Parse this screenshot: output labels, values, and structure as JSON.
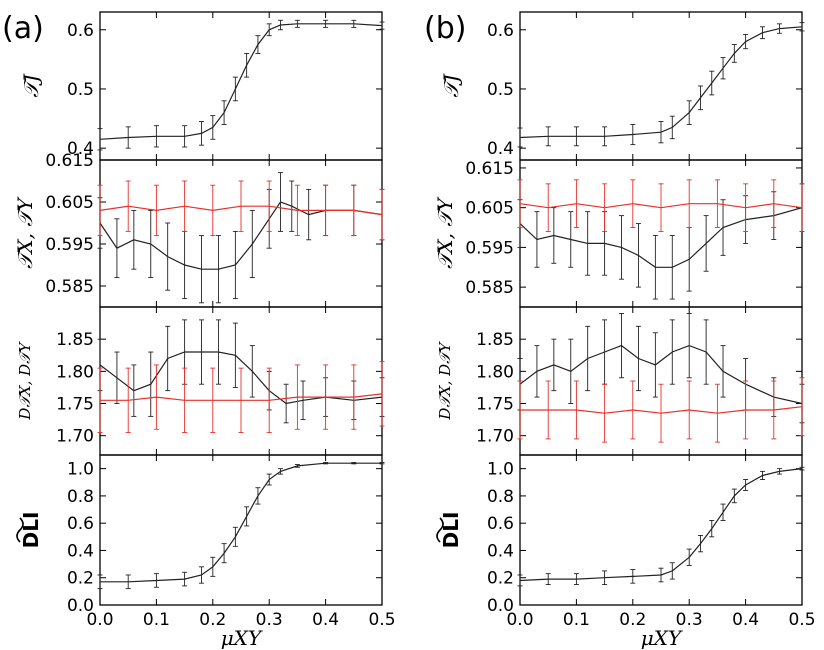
{
  "figure": {
    "panel_a_label": "(a)",
    "panel_b_label": "(b)"
  },
  "colors": {
    "black_series": "#222222",
    "red_series": "#e8302a"
  },
  "chart_data": [
    {
      "panel": "a",
      "row": 1,
      "type": "line",
      "ylabel": "𝒯J",
      "xlabel": "",
      "xlim": [
        0,
        0.5
      ],
      "ylim": [
        0.38,
        0.63
      ],
      "yticks": [
        0.4,
        0.5,
        0.6
      ],
      "ytick_labels": [
        "0.4",
        "0.5",
        "0.6"
      ],
      "series": [
        {
          "color": "black",
          "x": [
            0,
            0.05,
            0.1,
            0.15,
            0.18,
            0.2,
            0.22,
            0.24,
            0.26,
            0.28,
            0.3,
            0.32,
            0.35,
            0.4,
            0.45,
            0.5
          ],
          "y": [
            0.415,
            0.418,
            0.42,
            0.42,
            0.425,
            0.435,
            0.46,
            0.5,
            0.54,
            0.575,
            0.6,
            0.608,
            0.61,
            0.61,
            0.61,
            0.607
          ],
          "err": [
            0.018,
            0.018,
            0.018,
            0.018,
            0.02,
            0.02,
            0.02,
            0.02,
            0.02,
            0.015,
            0.01,
            0.008,
            0.006,
            0.006,
            0.006,
            0.006
          ]
        }
      ]
    },
    {
      "panel": "a",
      "row": 2,
      "type": "line",
      "ylabel": "𝒯X, 𝒯Y",
      "xlabel": "",
      "xlim": [
        0,
        0.5
      ],
      "ylim": [
        0.58,
        0.615
      ],
      "yticks": [
        0.585,
        0.595,
        0.605,
        0.615
      ],
      "ytick_labels": [
        "0.585",
        "0.595",
        "0.605",
        "0.615"
      ],
      "series": [
        {
          "color": "black",
          "x": [
            0,
            0.03,
            0.06,
            0.09,
            0.12,
            0.15,
            0.18,
            0.21,
            0.24,
            0.27,
            0.3,
            0.32,
            0.34,
            0.37,
            0.4,
            0.45,
            0.5
          ],
          "y": [
            0.6,
            0.594,
            0.596,
            0.595,
            0.592,
            0.59,
            0.589,
            0.589,
            0.59,
            0.595,
            0.601,
            0.605,
            0.604,
            0.602,
            0.603,
            0.603,
            0.602
          ],
          "err": [
            0.006,
            0.007,
            0.007,
            0.008,
            0.008,
            0.008,
            0.008,
            0.008,
            0.008,
            0.008,
            0.007,
            0.007,
            0.006,
            0.006,
            0.006,
            0.006,
            0.006
          ]
        },
        {
          "color": "red",
          "x": [
            0,
            0.05,
            0.1,
            0.15,
            0.2,
            0.25,
            0.3,
            0.35,
            0.4,
            0.45,
            0.5
          ],
          "y": [
            0.603,
            0.604,
            0.603,
            0.604,
            0.603,
            0.604,
            0.604,
            0.603,
            0.603,
            0.603,
            0.602
          ],
          "err": [
            0.006,
            0.006,
            0.006,
            0.006,
            0.006,
            0.006,
            0.006,
            0.006,
            0.006,
            0.006,
            0.006
          ]
        }
      ]
    },
    {
      "panel": "a",
      "row": 3,
      "type": "line",
      "ylabel": "D𝒯X, D𝒯Y",
      "xlabel": "",
      "xlim": [
        0,
        0.5
      ],
      "ylim": [
        1.67,
        1.9
      ],
      "yticks": [
        1.7,
        1.75,
        1.8,
        1.85
      ],
      "ytick_labels": [
        "1.70",
        "1.75",
        "1.80",
        "1.85"
      ],
      "series": [
        {
          "color": "black",
          "x": [
            0,
            0.03,
            0.06,
            0.09,
            0.12,
            0.15,
            0.18,
            0.21,
            0.24,
            0.27,
            0.3,
            0.33,
            0.36,
            0.4,
            0.45,
            0.5
          ],
          "y": [
            1.81,
            1.79,
            1.77,
            1.78,
            1.82,
            1.83,
            1.83,
            1.83,
            1.825,
            1.8,
            1.77,
            1.75,
            1.755,
            1.76,
            1.755,
            1.76
          ],
          "err": [
            0.04,
            0.04,
            0.04,
            0.05,
            0.05,
            0.05,
            0.05,
            0.05,
            0.05,
            0.04,
            0.03,
            0.03,
            0.03,
            0.03,
            0.03,
            0.03
          ]
        },
        {
          "color": "red",
          "x": [
            0,
            0.05,
            0.1,
            0.15,
            0.2,
            0.25,
            0.3,
            0.35,
            0.4,
            0.45,
            0.5
          ],
          "y": [
            1.755,
            1.755,
            1.76,
            1.755,
            1.755,
            1.755,
            1.755,
            1.76,
            1.76,
            1.76,
            1.765
          ],
          "err": [
            0.05,
            0.05,
            0.05,
            0.05,
            0.05,
            0.05,
            0.05,
            0.05,
            0.05,
            0.05,
            0.05
          ]
        }
      ]
    },
    {
      "panel": "a",
      "row": 4,
      "type": "line",
      "ylabel": "DLI",
      "xlabel": "μXY",
      "xlim": [
        0,
        0.5
      ],
      "ylim": [
        0,
        1.1
      ],
      "yticks": [
        0,
        0.2,
        0.4,
        0.6,
        0.8,
        1.0
      ],
      "ytick_labels": [
        "0.0",
        "0.2",
        "0.4",
        "0.6",
        "0.8",
        "1.0"
      ],
      "xticks": [
        0,
        0.1,
        0.2,
        0.3,
        0.4,
        0.5
      ],
      "xtick_labels": [
        "0.0",
        "0.1",
        "0.2",
        "0.3",
        "0.4",
        "0.5"
      ],
      "series": [
        {
          "color": "black",
          "x": [
            0,
            0.05,
            0.1,
            0.15,
            0.18,
            0.2,
            0.22,
            0.24,
            0.26,
            0.28,
            0.3,
            0.32,
            0.35,
            0.4,
            0.45,
            0.5
          ],
          "y": [
            0.17,
            0.17,
            0.18,
            0.19,
            0.22,
            0.28,
            0.38,
            0.5,
            0.65,
            0.8,
            0.92,
            0.98,
            1.02,
            1.04,
            1.04,
            1.04
          ],
          "err": [
            0.05,
            0.05,
            0.05,
            0.05,
            0.06,
            0.07,
            0.07,
            0.07,
            0.07,
            0.06,
            0.04,
            0.02,
            0.01,
            0.005,
            0.005,
            0.005
          ]
        }
      ]
    },
    {
      "panel": "b",
      "row": 1,
      "type": "line",
      "ylabel": "𝒯J",
      "xlabel": "",
      "xlim": [
        0,
        0.5
      ],
      "ylim": [
        0.38,
        0.63
      ],
      "yticks": [
        0.4,
        0.5,
        0.6
      ],
      "ytick_labels": [
        "0.4",
        "0.5",
        "0.6"
      ],
      "series": [
        {
          "color": "black",
          "x": [
            0,
            0.05,
            0.1,
            0.15,
            0.2,
            0.25,
            0.27,
            0.3,
            0.32,
            0.34,
            0.36,
            0.38,
            0.4,
            0.43,
            0.46,
            0.5
          ],
          "y": [
            0.418,
            0.42,
            0.42,
            0.42,
            0.423,
            0.427,
            0.435,
            0.46,
            0.485,
            0.51,
            0.535,
            0.56,
            0.58,
            0.595,
            0.602,
            0.605
          ],
          "err": [
            0.016,
            0.016,
            0.016,
            0.016,
            0.017,
            0.018,
            0.019,
            0.02,
            0.02,
            0.02,
            0.018,
            0.015,
            0.012,
            0.01,
            0.008,
            0.007
          ]
        }
      ]
    },
    {
      "panel": "b",
      "row": 2,
      "type": "line",
      "ylabel": "𝒯X, 𝒯Y",
      "xlabel": "",
      "xlim": [
        0,
        0.5
      ],
      "ylim": [
        0.58,
        0.617
      ],
      "yticks": [
        0.585,
        0.595,
        0.605,
        0.615
      ],
      "ytick_labels": [
        "0.585",
        "0.595",
        "0.605",
        "0.615"
      ],
      "series": [
        {
          "color": "black",
          "x": [
            0,
            0.03,
            0.06,
            0.09,
            0.12,
            0.15,
            0.18,
            0.21,
            0.24,
            0.27,
            0.3,
            0.33,
            0.36,
            0.4,
            0.45,
            0.5
          ],
          "y": [
            0.601,
            0.597,
            0.598,
            0.597,
            0.596,
            0.596,
            0.595,
            0.593,
            0.59,
            0.59,
            0.592,
            0.596,
            0.6,
            0.602,
            0.603,
            0.605
          ],
          "err": [
            0.006,
            0.007,
            0.007,
            0.007,
            0.008,
            0.008,
            0.008,
            0.008,
            0.008,
            0.008,
            0.008,
            0.007,
            0.007,
            0.006,
            0.006,
            0.006
          ]
        },
        {
          "color": "red",
          "x": [
            0,
            0.05,
            0.1,
            0.15,
            0.2,
            0.25,
            0.3,
            0.35,
            0.4,
            0.45,
            0.5
          ],
          "y": [
            0.606,
            0.605,
            0.606,
            0.605,
            0.606,
            0.605,
            0.606,
            0.606,
            0.605,
            0.606,
            0.605
          ],
          "err": [
            0.006,
            0.006,
            0.006,
            0.006,
            0.006,
            0.006,
            0.006,
            0.006,
            0.006,
            0.006,
            0.006
          ]
        }
      ]
    },
    {
      "panel": "b",
      "row": 3,
      "type": "line",
      "ylabel": "D𝒯X, D𝒯Y",
      "xlabel": "",
      "xlim": [
        0,
        0.5
      ],
      "ylim": [
        1.67,
        1.9
      ],
      "yticks": [
        1.7,
        1.75,
        1.8,
        1.85
      ],
      "ytick_labels": [
        "1.70",
        "1.75",
        "1.80",
        "1.85"
      ],
      "series": [
        {
          "color": "black",
          "x": [
            0,
            0.03,
            0.06,
            0.09,
            0.12,
            0.15,
            0.18,
            0.21,
            0.24,
            0.27,
            0.3,
            0.33,
            0.36,
            0.4,
            0.45,
            0.5
          ],
          "y": [
            1.78,
            1.8,
            1.81,
            1.8,
            1.82,
            1.83,
            1.84,
            1.82,
            1.81,
            1.83,
            1.84,
            1.83,
            1.8,
            1.78,
            1.76,
            1.75
          ],
          "err": [
            0.04,
            0.04,
            0.04,
            0.05,
            0.05,
            0.05,
            0.05,
            0.05,
            0.05,
            0.05,
            0.05,
            0.05,
            0.04,
            0.04,
            0.03,
            0.03
          ]
        },
        {
          "color": "red",
          "x": [
            0,
            0.05,
            0.1,
            0.15,
            0.2,
            0.25,
            0.3,
            0.35,
            0.4,
            0.45,
            0.5
          ],
          "y": [
            1.74,
            1.74,
            1.74,
            1.735,
            1.74,
            1.735,
            1.74,
            1.735,
            1.74,
            1.74,
            1.745
          ],
          "err": [
            0.045,
            0.045,
            0.045,
            0.045,
            0.045,
            0.045,
            0.045,
            0.045,
            0.045,
            0.045,
            0.045
          ]
        }
      ]
    },
    {
      "panel": "b",
      "row": 4,
      "type": "line",
      "ylabel": "DLI",
      "xlabel": "μXY",
      "xlim": [
        0,
        0.5
      ],
      "ylim": [
        0,
        1.1
      ],
      "yticks": [
        0,
        0.2,
        0.4,
        0.6,
        0.8,
        1.0
      ],
      "ytick_labels": [
        "0.0",
        "0.2",
        "0.4",
        "0.6",
        "0.8",
        "1.0"
      ],
      "xticks": [
        0,
        0.1,
        0.2,
        0.3,
        0.4,
        0.5
      ],
      "xtick_labels": [
        "0.0",
        "0.1",
        "0.2",
        "0.3",
        "0.4",
        "0.5"
      ],
      "series": [
        {
          "color": "black",
          "x": [
            0,
            0.05,
            0.1,
            0.15,
            0.2,
            0.25,
            0.27,
            0.3,
            0.32,
            0.34,
            0.36,
            0.38,
            0.4,
            0.43,
            0.46,
            0.5
          ],
          "y": [
            0.18,
            0.19,
            0.19,
            0.2,
            0.21,
            0.22,
            0.25,
            0.35,
            0.45,
            0.56,
            0.68,
            0.8,
            0.88,
            0.95,
            0.98,
            1.0
          ],
          "err": [
            0.04,
            0.04,
            0.04,
            0.05,
            0.05,
            0.05,
            0.06,
            0.06,
            0.06,
            0.06,
            0.06,
            0.05,
            0.04,
            0.03,
            0.02,
            0.01
          ]
        }
      ]
    }
  ]
}
